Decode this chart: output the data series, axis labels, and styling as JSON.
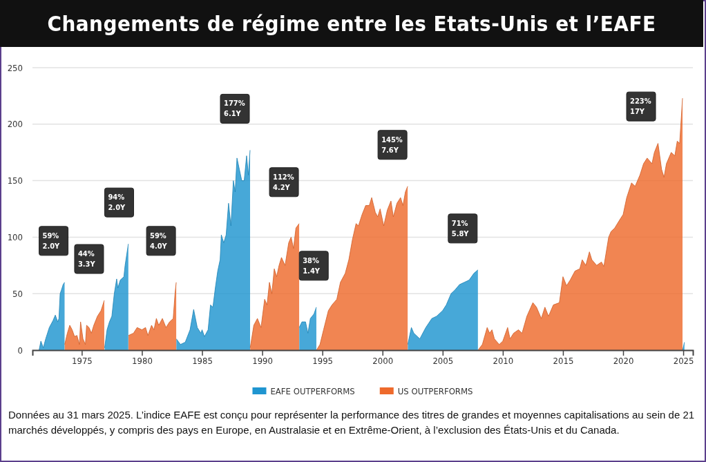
{
  "chart_data": {
    "type": "area",
    "title": "Changements de régime entre les Etats-Unis et l’EAFE",
    "xlim": [
      1970.9,
      2025.8
    ],
    "xticks": [
      1975,
      1980,
      1985,
      1990,
      1995,
      2000,
      2005,
      2010,
      2015,
      2020,
      2025
    ],
    "ylim": [
      0,
      250
    ],
    "yticks": [
      0,
      50,
      100,
      150,
      200,
      250
    ],
    "grid": "y",
    "legend": "bottom",
    "series": [
      {
        "name": "EAFE OUTPERFORMS",
        "color": "#1f95d0",
        "x": [
          1971.45,
          1971.6,
          1971.8,
          1972.0,
          1972.3,
          1972.6,
          1972.8,
          1973.0,
          1973.1,
          1973.2,
          1973.3,
          1973.45,
          1973.57,
          1973.58,
          1976.9,
          1977.1,
          1977.3,
          1977.5,
          1977.7,
          1977.9,
          1978.0,
          1978.2,
          1978.5,
          1978.6,
          1978.87,
          1978.88,
          1982.86,
          1983.2,
          1983.6,
          1984.0,
          1984.3,
          1984.6,
          1984.9,
          1985.0,
          1985.2,
          1985.5,
          1985.7,
          1985.9,
          1986.1,
          1986.3,
          1986.5,
          1986.6,
          1986.8,
          1987.0,
          1987.2,
          1987.4,
          1987.6,
          1987.75,
          1987.9,
          1988.1,
          1988.3,
          1988.5,
          1988.7,
          1988.85,
          1988.99,
          1989.0,
          1993.08,
          1993.3,
          1993.6,
          1993.8,
          1994.0,
          1994.3,
          1994.5,
          1994.51,
          2002.1,
          2002.4,
          2002.6,
          2003.1,
          2003.6,
          2004.1,
          2004.5,
          2005.0,
          2005.3,
          2005.7,
          2006.0,
          2006.4,
          2006.8,
          2007.2,
          2007.6,
          2007.93,
          2007.94,
          2024.95,
          2025.1
        ],
        "values": [
          0,
          8,
          2,
          10,
          20,
          26,
          31,
          25,
          28,
          50,
          53,
          58,
          60,
          null,
          2,
          18,
          25,
          30,
          50,
          63,
          55,
          62,
          65,
          75,
          94,
          null,
          10,
          5,
          7,
          18,
          36,
          20,
          15,
          18,
          12,
          18,
          40,
          38,
          55,
          70,
          80,
          102,
          95,
          102,
          130,
          110,
          150,
          140,
          170,
          160,
          150,
          150,
          172,
          155,
          177,
          null,
          20,
          25,
          25,
          15,
          28,
          32,
          38,
          null,
          5,
          20,
          15,
          10,
          20,
          28,
          30,
          35,
          40,
          50,
          53,
          58,
          60,
          62,
          68,
          71,
          null,
          0,
          7
        ]
      },
      {
        "name": "US OUTPERFORMS",
        "color": "#ee6a2c",
        "x": [
          1973.58,
          1973.8,
          1974.0,
          1974.2,
          1974.4,
          1974.6,
          1974.8,
          1974.9,
          1975.1,
          1975.3,
          1975.4,
          1975.6,
          1975.8,
          1976.0,
          1976.3,
          1976.6,
          1976.87,
          1976.88,
          1978.88,
          1979.3,
          1979.6,
          1980.0,
          1980.3,
          1980.5,
          1980.8,
          1981.0,
          1981.2,
          1981.4,
          1981.7,
          1982.0,
          1982.3,
          1982.6,
          1982.75,
          1982.85,
          1982.86,
          1989.0,
          1989.3,
          1989.6,
          1989.9,
          1990.2,
          1990.4,
          1990.6,
          1990.8,
          1991.0,
          1991.2,
          1991.4,
          1991.6,
          1991.9,
          1992.2,
          1992.4,
          1992.6,
          1992.8,
          1993.07,
          1993.08,
          1994.51,
          1994.8,
          1995.1,
          1995.5,
          1995.8,
          1996.2,
          1996.5,
          1996.9,
          1997.2,
          1997.5,
          1997.8,
          1998.0,
          1998.3,
          1998.6,
          1998.9,
          1999.1,
          1999.4,
          1999.6,
          1999.8,
          2000.1,
          2000.4,
          2000.7,
          2000.9,
          2001.2,
          2001.5,
          2001.7,
          2001.9,
          2002.09,
          2002.1,
          2007.94,
          2008.3,
          2008.7,
          2008.9,
          2009.1,
          2009.3,
          2009.7,
          2010.0,
          2010.4,
          2010.6,
          2010.9,
          2011.3,
          2011.6,
          2012.0,
          2012.5,
          2012.8,
          2013.2,
          2013.5,
          2013.8,
          2014.2,
          2014.7,
          2015.0,
          2015.3,
          2015.6,
          2016.0,
          2016.4,
          2016.6,
          2016.9,
          2017.2,
          2017.4,
          2017.8,
          2018.2,
          2018.4,
          2018.8,
          2019.0,
          2019.3,
          2019.7,
          2020.0,
          2020.3,
          2020.7,
          2021.0,
          2021.4,
          2021.7,
          2022.0,
          2022.4,
          2022.6,
          2022.9,
          2023.2,
          2023.4,
          2023.6,
          2024.0,
          2024.3,
          2024.5,
          2024.7,
          2024.94
        ],
        "values": [
          5,
          15,
          22,
          18,
          12,
          13,
          5,
          25,
          10,
          5,
          22,
          20,
          15,
          22,
          30,
          35,
          44,
          null,
          13,
          15,
          20,
          18,
          20,
          13,
          22,
          18,
          28,
          22,
          28,
          20,
          25,
          28,
          50,
          60,
          null,
          2,
          22,
          28,
          20,
          45,
          40,
          60,
          50,
          72,
          65,
          75,
          82,
          75,
          95,
          100,
          90,
          108,
          112,
          null,
          0,
          5,
          18,
          35,
          40,
          45,
          60,
          68,
          80,
          98,
          112,
          110,
          120,
          128,
          128,
          135,
          122,
          118,
          125,
          110,
          124,
          132,
          118,
          130,
          135,
          128,
          140,
          145,
          null,
          0,
          5,
          20,
          15,
          18,
          10,
          5,
          8,
          20,
          10,
          15,
          18,
          15,
          30,
          42,
          38,
          28,
          38,
          30,
          40,
          42,
          65,
          57,
          62,
          70,
          72,
          80,
          75,
          87,
          80,
          75,
          78,
          74,
          100,
          105,
          108,
          115,
          120,
          135,
          148,
          145,
          155,
          165,
          170,
          165,
          175,
          183,
          160,
          153,
          165,
          175,
          172,
          185,
          183,
          223
        ]
      }
    ],
    "annotations": [
      "59%\n2.0Y",
      "44%\n3.3Y",
      "94%\n2.0Y",
      "59%\n4.0Y",
      "177%\n6.1Y",
      "112%\n4.2Y",
      "38%\n1.4Y",
      "145%\n7.6Y",
      "71%\n5.8Y",
      "223%\n17Y",
      "Données au 31 mars 2025. L’indice EAFE est conçu pour représenter la performance des titres de grandes et moyennes capitalisations au sein de 21 marchés développés, y compris des pays en Europe, en Australasie et en Extrême-Orient, à l’exclusion des États-Unis et du Canada."
    ]
  }
}
